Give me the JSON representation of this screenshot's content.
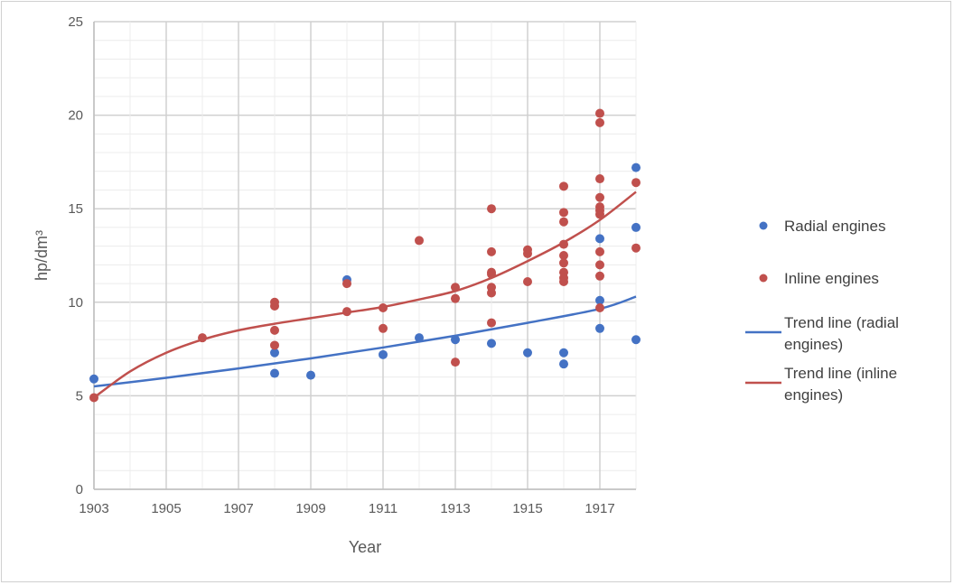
{
  "chart_data": {
    "type": "scatter",
    "title": "",
    "xlabel": "Year",
    "ylabel": "hp/dm³",
    "xlim": [
      1903,
      1918
    ],
    "ylim": [
      0,
      25
    ],
    "x_ticks": [
      "1903",
      "1905",
      "1907",
      "1909",
      "1911",
      "1913",
      "1915",
      "1917"
    ],
    "y_ticks": [
      "0",
      "5",
      "10",
      "15",
      "20",
      "25"
    ],
    "grid": true,
    "legend_position": "right",
    "colors": {
      "radial": "#4472c4",
      "inline": "#c0504d",
      "grid": "#d9d9d9",
      "axis_text": "#595959"
    },
    "series": [
      {
        "name": "Radial engines",
        "kind": "points",
        "color": "#4472c4",
        "points": [
          [
            1903,
            5.9
          ],
          [
            1908,
            7.3
          ],
          [
            1908,
            6.2
          ],
          [
            1909,
            6.1
          ],
          [
            1910,
            11.2
          ],
          [
            1911,
            7.2
          ],
          [
            1912,
            8.1
          ],
          [
            1913,
            8.0
          ],
          [
            1914,
            7.8
          ],
          [
            1915,
            7.3
          ],
          [
            1916,
            7.3
          ],
          [
            1916,
            6.7
          ],
          [
            1917,
            13.4
          ],
          [
            1917,
            10.1
          ],
          [
            1917,
            8.6
          ],
          [
            1918,
            17.2
          ],
          [
            1918,
            14.0
          ],
          [
            1918,
            8.0
          ]
        ]
      },
      {
        "name": "Inline engines",
        "kind": "points",
        "color": "#c0504d",
        "points": [
          [
            1903,
            4.9
          ],
          [
            1906,
            8.1
          ],
          [
            1908,
            10.0
          ],
          [
            1908,
            9.8
          ],
          [
            1908,
            8.5
          ],
          [
            1908,
            7.7
          ],
          [
            1910,
            11.0
          ],
          [
            1910,
            9.5
          ],
          [
            1911,
            9.7
          ],
          [
            1911,
            8.6
          ],
          [
            1912,
            13.3
          ],
          [
            1913,
            10.8
          ],
          [
            1913,
            10.2
          ],
          [
            1913,
            6.8
          ],
          [
            1914,
            15.0
          ],
          [
            1914,
            12.7
          ],
          [
            1914,
            11.6
          ],
          [
            1914,
            11.5
          ],
          [
            1914,
            10.8
          ],
          [
            1914,
            10.5
          ],
          [
            1914,
            8.9
          ],
          [
            1915,
            12.8
          ],
          [
            1915,
            12.6
          ],
          [
            1915,
            11.1
          ],
          [
            1916,
            16.2
          ],
          [
            1916,
            14.8
          ],
          [
            1916,
            14.3
          ],
          [
            1916,
            13.1
          ],
          [
            1916,
            12.5
          ],
          [
            1916,
            12.1
          ],
          [
            1916,
            11.6
          ],
          [
            1916,
            11.3
          ],
          [
            1916,
            11.1
          ],
          [
            1917,
            20.1
          ],
          [
            1917,
            19.6
          ],
          [
            1917,
            16.6
          ],
          [
            1917,
            15.6
          ],
          [
            1917,
            15.1
          ],
          [
            1917,
            14.9
          ],
          [
            1917,
            14.7
          ],
          [
            1917,
            12.7
          ],
          [
            1917,
            12.0
          ],
          [
            1917,
            11.4
          ],
          [
            1917,
            9.7
          ],
          [
            1918,
            16.4
          ],
          [
            1918,
            12.9
          ]
        ]
      },
      {
        "name": "Trend line (radial engines)",
        "kind": "line",
        "color": "#4472c4",
        "points": [
          [
            1903,
            5.5
          ],
          [
            1905,
            5.96
          ],
          [
            1907,
            6.46
          ],
          [
            1909,
            7.0
          ],
          [
            1911,
            7.58
          ],
          [
            1913,
            8.21
          ],
          [
            1915,
            8.9
          ],
          [
            1917,
            9.65
          ],
          [
            1918,
            10.3
          ]
        ]
      },
      {
        "name": "Trend line (inline engines)",
        "kind": "line",
        "color": "#c0504d",
        "points": [
          [
            1903,
            4.9
          ],
          [
            1904,
            6.3
          ],
          [
            1905,
            7.3
          ],
          [
            1906,
            8.0
          ],
          [
            1907,
            8.5
          ],
          [
            1908,
            8.85
          ],
          [
            1909,
            9.15
          ],
          [
            1910,
            9.45
          ],
          [
            1911,
            9.75
          ],
          [
            1912,
            10.15
          ],
          [
            1913,
            10.6
          ],
          [
            1914,
            11.3
          ],
          [
            1915,
            12.2
          ],
          [
            1916,
            13.2
          ],
          [
            1917,
            14.4
          ],
          [
            1918,
            15.9
          ]
        ]
      }
    ],
    "legend": [
      {
        "label": "Radial engines",
        "symbol": "dot",
        "color": "#4472c4"
      },
      {
        "label": "Inline engines",
        "symbol": "dot",
        "color": "#c0504d"
      },
      {
        "label_lines": [
          "Trend line (radial",
          "engines)"
        ],
        "symbol": "line",
        "color": "#4472c4"
      },
      {
        "label_lines": [
          "Trend line (inline",
          "engines)"
        ],
        "symbol": "line",
        "color": "#c0504d"
      }
    ]
  }
}
